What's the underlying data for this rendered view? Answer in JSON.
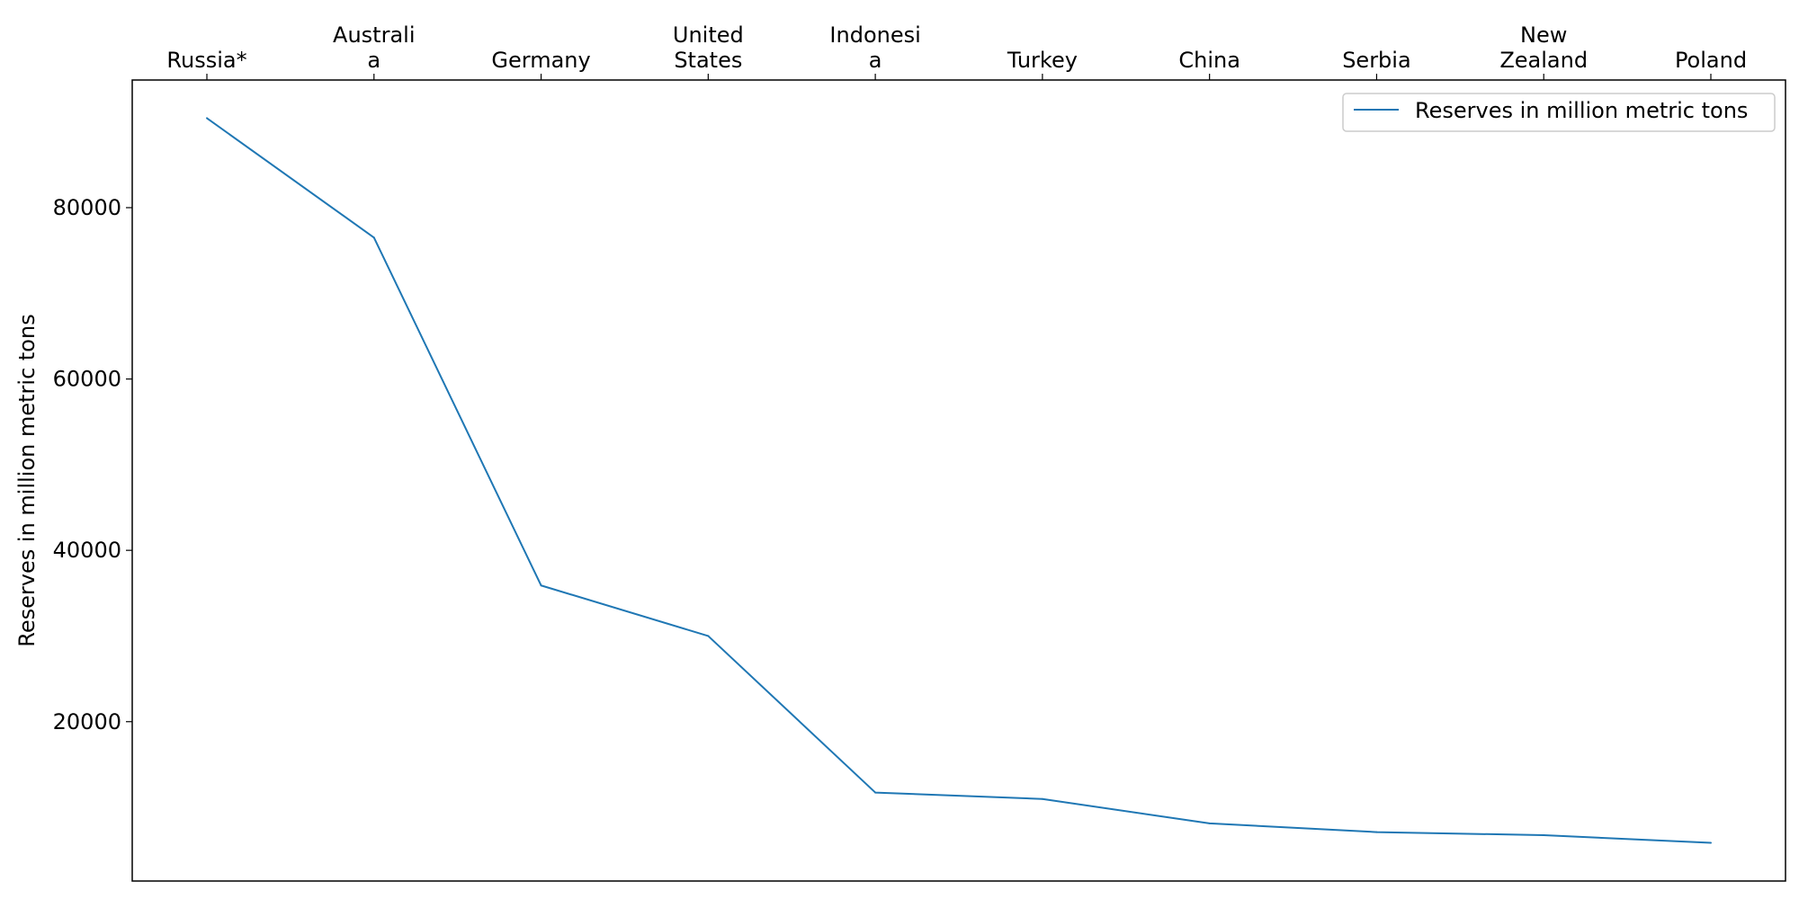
{
  "chart_data": {
    "type": "line",
    "categories": [
      "Russia*",
      "Australia",
      "Germany",
      "United States",
      "Indonesia",
      "Turkey",
      "China",
      "Serbia",
      "New Zealand",
      "Poland"
    ],
    "category_tick_lines": [
      [
        "Russia*"
      ],
      [
        "Australi",
        "a"
      ],
      [
        "Germany"
      ],
      [
        "United",
        "States"
      ],
      [
        "Indonesi",
        "a"
      ],
      [
        "Turkey"
      ],
      [
        "China"
      ],
      [
        "Serbia"
      ],
      [
        "New",
        "Zealand"
      ],
      [
        "Poland"
      ]
    ],
    "series": [
      {
        "name": "Reserves in million metric tons",
        "values": [
          90447,
          76508,
          35900,
          30003,
          11728,
          10975,
          8128,
          7112,
          6750,
          5865
        ],
        "color": "#1f77b4"
      }
    ],
    "xlabel": "",
    "ylabel": "Reserves in million metric tons",
    "ylim": [
      1400,
      94900
    ],
    "yticks": [
      20000,
      40000,
      60000,
      80000
    ],
    "x_axis_position": "top",
    "grid": false,
    "legend_position": "top-right"
  }
}
